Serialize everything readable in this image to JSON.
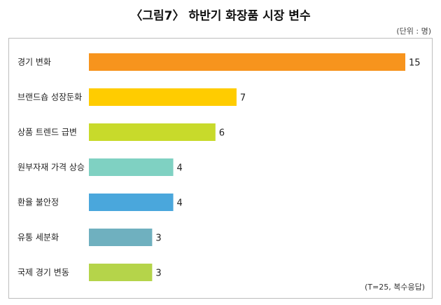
{
  "chart_data": {
    "type": "bar",
    "orientation": "horizontal",
    "title": "〈그림7〉 하반기 화장품 시장 변수",
    "unit_note": "(단위 : 명)",
    "footnote": "(T=25, 복수응답)",
    "categories": [
      "경기 변화",
      "브랜드숍 성장둔화",
      "상품 트렌드 급변",
      "원부자재 가격 상승",
      "환율 불안정",
      "유통 세분화",
      "국제 경기 변동"
    ],
    "values": [
      15,
      7,
      6,
      4,
      4,
      3,
      3
    ],
    "colors": [
      "#f7941d",
      "#ffcc00",
      "#c8da2b",
      "#7fd1c2",
      "#4aa7dc",
      "#6fb0bf",
      "#b5d44a"
    ],
    "xlim": [
      0,
      15
    ],
    "grid": false
  }
}
